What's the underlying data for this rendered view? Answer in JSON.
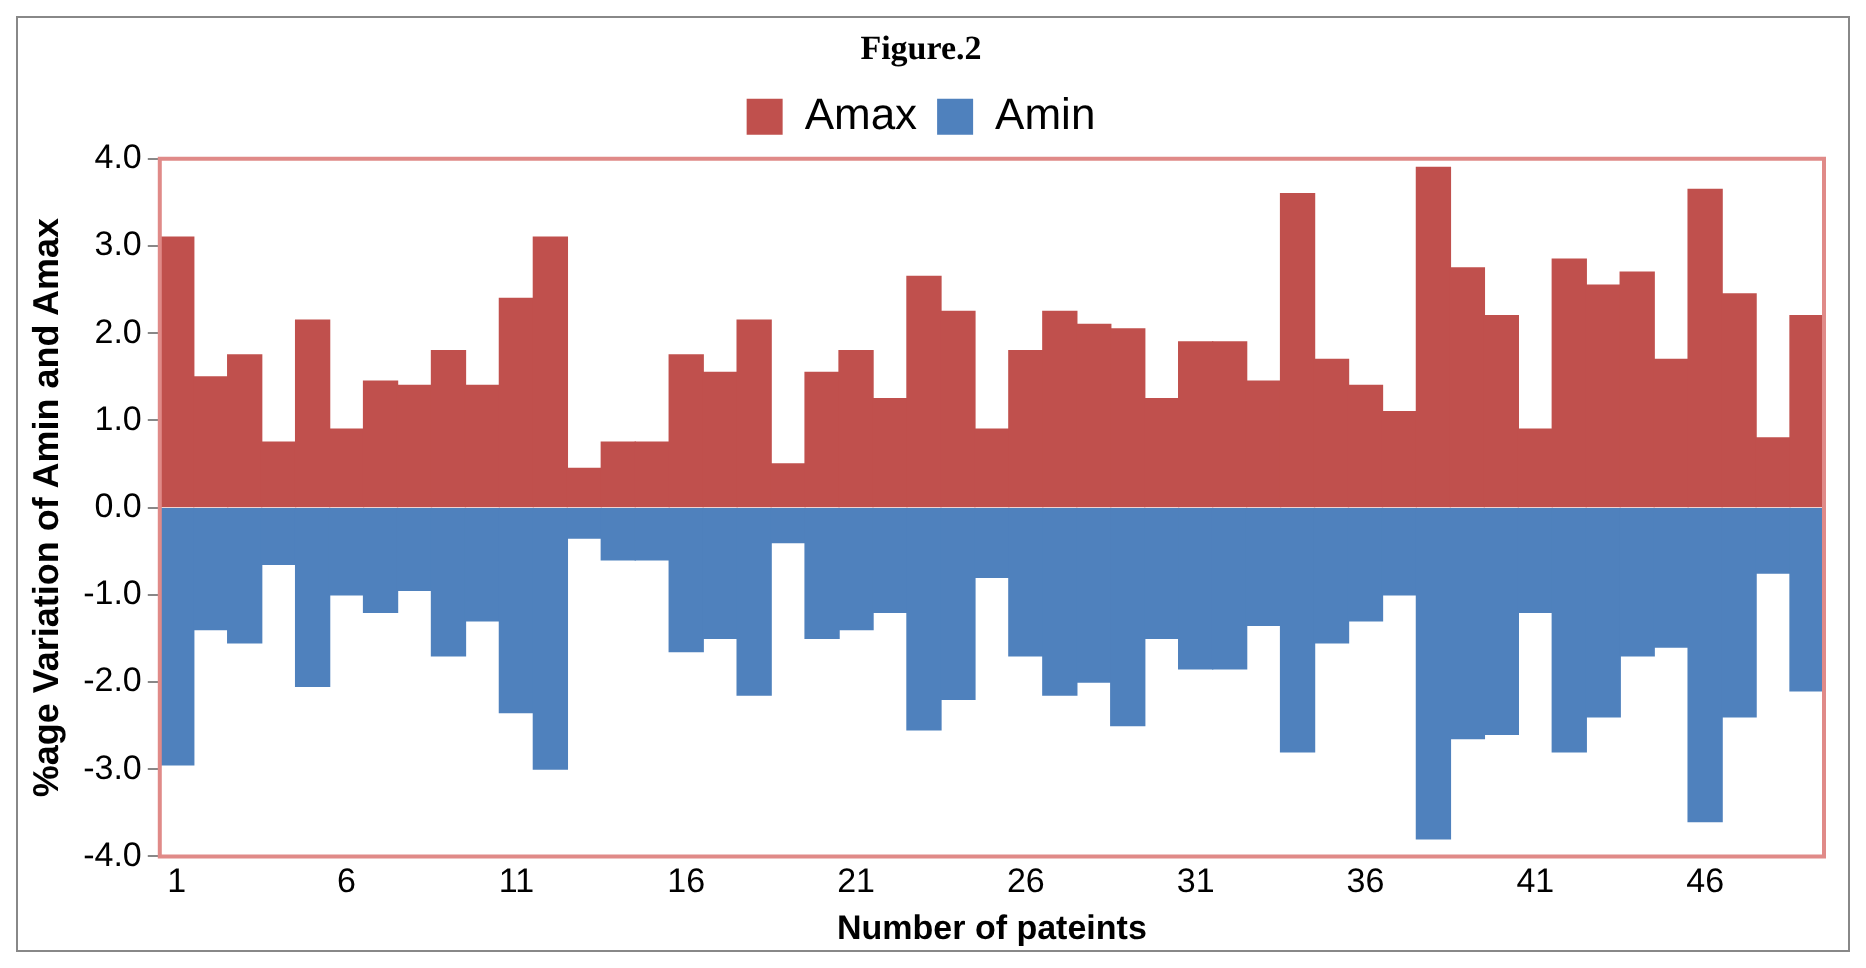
{
  "chart_data": {
    "type": "bar",
    "title": "Figure.2",
    "xlabel": "Number of pateints",
    "ylabel": "%age Variation of Amin and Amax",
    "x": [
      1,
      2,
      3,
      4,
      5,
      6,
      7,
      8,
      9,
      10,
      11,
      12,
      13,
      14,
      15,
      16,
      17,
      18,
      19,
      20,
      21,
      22,
      23,
      24,
      25,
      26,
      27,
      28,
      29,
      30,
      31,
      32,
      33,
      34,
      35,
      36,
      37,
      38,
      39,
      40,
      41,
      42,
      43,
      44,
      45,
      46,
      47,
      48,
      49
    ],
    "xlim": [
      0.5,
      49.5
    ],
    "xticks": [
      1,
      6,
      11,
      16,
      21,
      26,
      31,
      36,
      41,
      46
    ],
    "series": [
      {
        "name": "Amax",
        "color": "#c0504d",
        "values": [
          3.1,
          1.5,
          1.75,
          0.75,
          2.15,
          0.9,
          1.45,
          1.4,
          1.8,
          1.4,
          2.4,
          3.1,
          0.45,
          0.75,
          0.75,
          1.75,
          1.55,
          2.15,
          0.5,
          1.55,
          1.8,
          1.25,
          2.65,
          2.25,
          0.9,
          1.8,
          2.25,
          2.1,
          2.05,
          1.25,
          1.9,
          1.9,
          1.45,
          3.6,
          1.7,
          1.4,
          1.1,
          3.9,
          2.75,
          2.2,
          0.9,
          2.85,
          2.55,
          2.7,
          1.7,
          3.65,
          2.45,
          0.8,
          2.2
        ]
      },
      {
        "name": "Amin",
        "color": "#4f81bd",
        "values": [
          -2.95,
          -1.4,
          -1.55,
          -0.65,
          -2.05,
          -1.0,
          -1.2,
          -0.95,
          -1.7,
          -1.3,
          -2.35,
          -3.0,
          -0.35,
          -0.6,
          -0.6,
          -1.65,
          -1.5,
          -2.15,
          -0.4,
          -1.5,
          -1.4,
          -1.2,
          -2.55,
          -2.2,
          -0.8,
          -1.7,
          -2.15,
          -2.0,
          -2.5,
          -1.5,
          -1.85,
          -1.85,
          -1.35,
          -2.8,
          -1.55,
          -1.3,
          -1.0,
          -3.8,
          -2.65,
          -2.6,
          -1.2,
          -2.8,
          -2.4,
          -1.7,
          -1.6,
          -3.6,
          -2.4,
          -0.75,
          -2.1
        ]
      }
    ],
    "stacked": true,
    "ylim": [
      -4,
      4
    ],
    "yticks": [
      {
        "value": -4,
        "label": "-4.0"
      },
      {
        "value": -3,
        "label": "-3.0"
      },
      {
        "value": -2,
        "label": "-2.0"
      },
      {
        "value": -1,
        "label": "-1.0"
      },
      {
        "value": 0,
        "label": "0.0"
      },
      {
        "value": 1,
        "label": "1.0"
      },
      {
        "value": 2,
        "label": "2.0"
      },
      {
        "value": 3,
        "label": "3.0"
      },
      {
        "value": 4,
        "label": "4.0"
      }
    ],
    "grid": false,
    "legend": "top"
  }
}
